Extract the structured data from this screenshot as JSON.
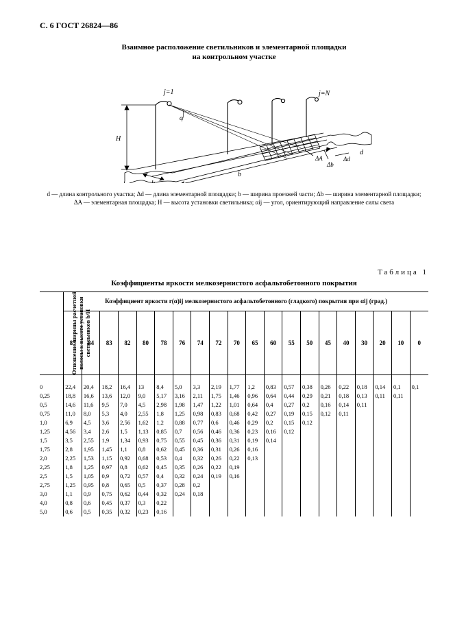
{
  "page_header": "С. 6 ГОСТ 26824—86",
  "figure": {
    "title_line1": "Взаимное расположение светильников и элементарной площадки",
    "title_line2": "на контрольном участке",
    "labels": {
      "j1": "j=1",
      "jN": "j=N",
      "H": "H",
      "b": "b",
      "d": "d",
      "dA": "ΔA",
      "dd": "Δd",
      "db": "Δb",
      "a": "α"
    },
    "caption": "d — длина контрольного участка; Δd — длина элементарной площадки; b — ширина проезжей части; Δb — ширина элементарной площадки; ΔA — элементарная площадка; H — высота установки светильника; αij — угол, ориентирующий направление силы света"
  },
  "table": {
    "label": "Таблица 1",
    "title": "Коэффициенты яркости мелкозернистого асфальтобетонного покрытия",
    "row_header": "Отношение ширины расчетной\nполосы к высоте установки\nсветильников b/H",
    "super_title": "Коэффициент яркости r(α)ij мелкозернистого асфальтобетонного (гладкого) покрытия при αij (град.)",
    "angles": [
      "85",
      "84",
      "83",
      "82",
      "80",
      "78",
      "76",
      "74",
      "72",
      "70",
      "65",
      "60",
      "55",
      "50",
      "45",
      "40",
      "30",
      "20",
      "10",
      "0"
    ],
    "row_labels": [
      "0",
      "0,25",
      "0,5",
      "0,75",
      "1,0",
      "1,25",
      "1,5",
      "1,75",
      "2,0",
      "2,25",
      "2,5",
      "2,75",
      "3,0",
      "4,0",
      "5,0"
    ],
    "rows": [
      [
        "22,4",
        "20,4",
        "18,2",
        "16,4",
        "13",
        "8,4",
        "5,0",
        "3,3",
        "2,19",
        "1,77",
        "1,2",
        "0,83",
        "0,57",
        "0,38",
        "0,26",
        "0,22",
        "0,18",
        "0,14",
        "0,1",
        "0,1"
      ],
      [
        "18,8",
        "16,6",
        "13,6",
        "12,0",
        "9,0",
        "5,17",
        "3,16",
        "2,11",
        "1,75",
        "1,46",
        "0,96",
        "0,64",
        "0,44",
        "0,29",
        "0,21",
        "0,18",
        "0,13",
        "0,11",
        "0,11",
        ""
      ],
      [
        "14,6",
        "11,6",
        "9,5",
        "7,0",
        "4,5",
        "2,98",
        "1,98",
        "1,47",
        "1,22",
        "1,01",
        "0,64",
        "0,4",
        "0,27",
        "0,2",
        "0,16",
        "0,14",
        "0,11",
        "",
        "",
        ""
      ],
      [
        "11,0",
        "8,0",
        "5,3",
        "4,0",
        "2,55",
        "1,8",
        "1,25",
        "0,98",
        "0,83",
        "0,68",
        "0,42",
        "0,27",
        "0,19",
        "0,15",
        "0,12",
        "0,11",
        "",
        "",
        "",
        ""
      ],
      [
        "6,9",
        "4,5",
        "3,6",
        "2,56",
        "1,62",
        "1,2",
        "0,88",
        "0,77",
        "0,6",
        "0,46",
        "0,29",
        "0,2",
        "0,15",
        "0,12",
        "",
        "",
        "",
        "",
        "",
        ""
      ],
      [
        "4,56",
        "3,4",
        "2,6",
        "1,5",
        "1,13",
        "0,85",
        "0,7",
        "0,56",
        "0,46",
        "0,36",
        "0,23",
        "0,16",
        "0,12",
        "",
        "",
        "",
        "",
        "",
        "",
        ""
      ],
      [
        "3,5",
        "2,55",
        "1,9",
        "1,34",
        "0,93",
        "0,75",
        "0,55",
        "0,45",
        "0,36",
        "0,31",
        "0,19",
        "0,14",
        "",
        "",
        "",
        "",
        "",
        "",
        "",
        ""
      ],
      [
        "2,8",
        "1,95",
        "1,45",
        "1,1",
        "0,8",
        "0,62",
        "0,45",
        "0,36",
        "0,31",
        "0,26",
        "0,16",
        "",
        "",
        "",
        "",
        "",
        "",
        "",
        "",
        ""
      ],
      [
        "2,25",
        "1,53",
        "1,15",
        "0,92",
        "0,68",
        "0,53",
        "0,4",
        "0,32",
        "0,26",
        "0,22",
        "0,13",
        "",
        "",
        "",
        "",
        "",
        "",
        "",
        "",
        ""
      ],
      [
        "1,8",
        "1,25",
        "0,97",
        "0,8",
        "0,62",
        "0,45",
        "0,35",
        "0,26",
        "0,22",
        "0,19",
        "",
        "",
        "",
        "",
        "",
        "",
        "",
        "",
        "",
        ""
      ],
      [
        "1,5",
        "1,05",
        "0,9",
        "0,72",
        "0,57",
        "0,4",
        "0,32",
        "0,24",
        "0,19",
        "0,16",
        "",
        "",
        "",
        "",
        "",
        "",
        "",
        "",
        "",
        ""
      ],
      [
        "1,25",
        "0,95",
        "0,8",
        "0,65",
        "0,5",
        "0,37",
        "0,28",
        "0,2",
        "",
        "",
        "",
        "",
        "",
        "",
        "",
        "",
        "",
        "",
        "",
        ""
      ],
      [
        "1,1",
        "0,9",
        "0,75",
        "0,62",
        "0,44",
        "0,32",
        "0,24",
        "0,18",
        "",
        "",
        "",
        "",
        "",
        "",
        "",
        "",
        "",
        "",
        "",
        ""
      ],
      [
        "0,8",
        "0,6",
        "0,45",
        "0,37",
        "0,3",
        "0,22",
        "",
        "",
        "",
        "",
        "",
        "",
        "",
        "",
        "",
        "",
        "",
        "",
        "",
        ""
      ],
      [
        "0,6",
        "0,5",
        "0,35",
        "0,32",
        "0,23",
        "0,16",
        "",
        "",
        "",
        "",
        "",
        "",
        "",
        "",
        "",
        "",
        "",
        "",
        "",
        ""
      ]
    ]
  }
}
